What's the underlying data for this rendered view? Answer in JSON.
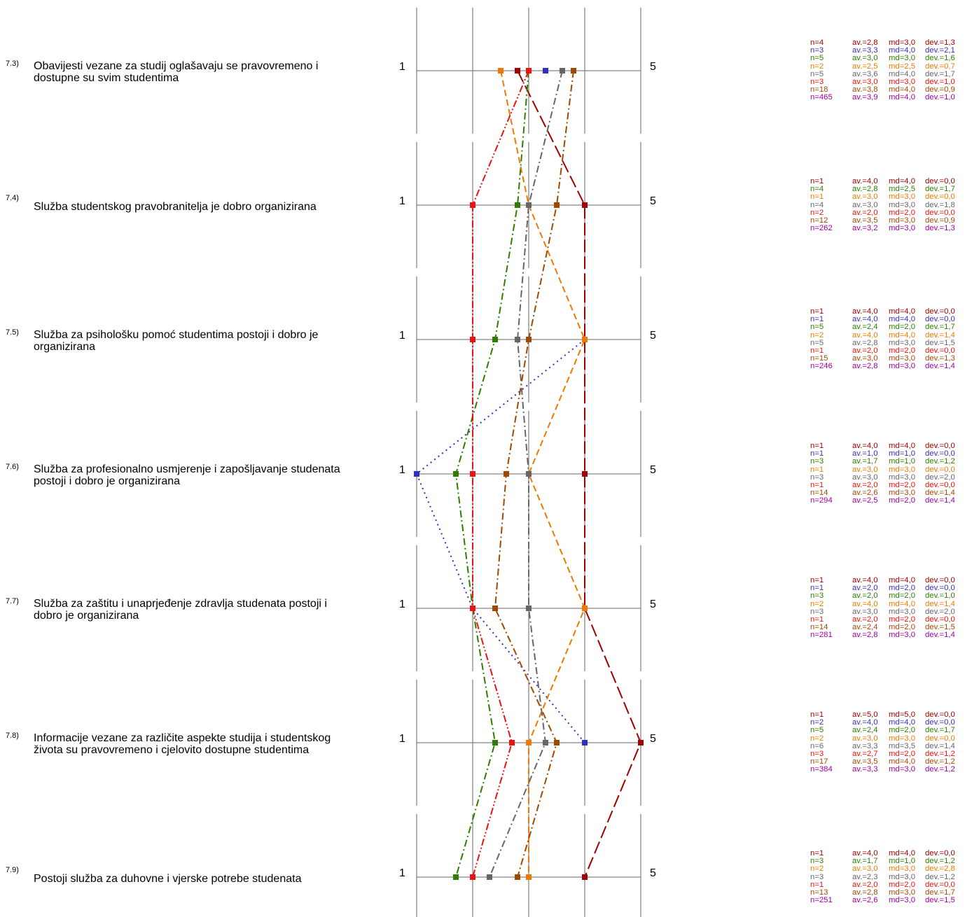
{
  "chart_data": {
    "type": "line",
    "scale": {
      "min_label": "1",
      "max_label": "5",
      "min": 1,
      "max": 5
    },
    "series": [
      {
        "color": "#a00000",
        "dash": "long-dash",
        "values": [
          2.8,
          4.0,
          4.0,
          4.0,
          4.0,
          5.0,
          4.0
        ]
      },
      {
        "color": "#3030c0",
        "dash": "dot",
        "values": [
          3.3,
          null,
          4.0,
          1.0,
          2.0,
          4.0,
          null
        ]
      },
      {
        "color": "#2e7d00",
        "dash": "dash-dot",
        "values": [
          3.0,
          2.8,
          2.4,
          1.7,
          2.0,
          2.4,
          1.7
        ]
      },
      {
        "color": "#f07800",
        "dash": "dash",
        "values": [
          2.5,
          3.0,
          4.0,
          3.0,
          4.0,
          3.0,
          3.0
        ]
      },
      {
        "color": "#666666",
        "dash": "dash-dot",
        "values": [
          3.6,
          3.0,
          2.8,
          3.0,
          3.0,
          3.3,
          2.3
        ]
      },
      {
        "color": "#ee1111",
        "dash": "dash-dot-dot",
        "values": [
          3.0,
          2.0,
          2.0,
          2.0,
          2.0,
          2.7,
          2.0
        ]
      },
      {
        "color": "#a04800",
        "dash": "dash-dot",
        "values": [
          3.8,
          3.5,
          3.0,
          2.6,
          2.4,
          3.5,
          2.8
        ]
      }
    ]
  },
  "colors": {
    "s1": "#a00000",
    "s2": "#3030c0",
    "s3": "#2e7d00",
    "s4": "#f07800",
    "s5": "#666666",
    "s6": "#ee1111",
    "s7": "#a04800",
    "total": "#a000a0"
  },
  "questions": [
    {
      "num": "7.3)",
      "text": "Obavijesti vezane za studij oglašavaju se pravovremeno i dostupne su svim studentima",
      "stats": [
        {
          "s": "s1",
          "n": "n=4",
          "av": "av.=2,8",
          "md": "md=3,0",
          "dev": "dev.=1,3"
        },
        {
          "s": "s2",
          "n": "n=3",
          "av": "av.=3,3",
          "md": "md=4,0",
          "dev": "dev.=2,1"
        },
        {
          "s": "s3",
          "n": "n=5",
          "av": "av.=3,0",
          "md": "md=3,0",
          "dev": "dev.=1,6"
        },
        {
          "s": "s4",
          "n": "n=2",
          "av": "av.=2,5",
          "md": "md=2,5",
          "dev": "dev.=0,7"
        },
        {
          "s": "s5",
          "n": "n=5",
          "av": "av.=3,6",
          "md": "md=4,0",
          "dev": "dev.=1,7"
        },
        {
          "s": "s6",
          "n": "n=3",
          "av": "av.=3,0",
          "md": "md=3,0",
          "dev": "dev.=1,0"
        },
        {
          "s": "s7",
          "n": "n=18",
          "av": "av.=3,8",
          "md": "md=4,0",
          "dev": "dev.=0,9"
        },
        {
          "s": "total",
          "n": "n=465",
          "av": "av.=3,9",
          "md": "md=4,0",
          "dev": "dev.=1,0"
        }
      ]
    },
    {
      "num": "7.4)",
      "text": "Služba studentskog pravobranitelja je dobro organizirana",
      "stats": [
        {
          "s": "s1",
          "n": "n=1",
          "av": "av.=4,0",
          "md": "md=4,0",
          "dev": "dev.=0,0"
        },
        {
          "s": "s3",
          "n": "n=4",
          "av": "av.=2,8",
          "md": "md=2,5",
          "dev": "dev.=1,7"
        },
        {
          "s": "s4",
          "n": "n=1",
          "av": "av.=3,0",
          "md": "md=3,0",
          "dev": "dev.=0,0"
        },
        {
          "s": "s5",
          "n": "n=4",
          "av": "av.=3,0",
          "md": "md=3,0",
          "dev": "dev.=1,8"
        },
        {
          "s": "s6",
          "n": "n=2",
          "av": "av.=2,0",
          "md": "md=2,0",
          "dev": "dev.=0,0"
        },
        {
          "s": "s7",
          "n": "n=12",
          "av": "av.=3,5",
          "md": "md=3,0",
          "dev": "dev.=0,9"
        },
        {
          "s": "total",
          "n": "n=262",
          "av": "av.=3,2",
          "md": "md=3,0",
          "dev": "dev.=1,3"
        }
      ]
    },
    {
      "num": "7.5)",
      "text": "Služba za psihološku pomoć studentima postoji i dobro je organizirana",
      "stats": [
        {
          "s": "s1",
          "n": "n=1",
          "av": "av.=4,0",
          "md": "md=4,0",
          "dev": "dev.=0,0"
        },
        {
          "s": "s2",
          "n": "n=1",
          "av": "av.=4,0",
          "md": "md=4,0",
          "dev": "dev.=0,0"
        },
        {
          "s": "s3",
          "n": "n=5",
          "av": "av.=2,4",
          "md": "md=2,0",
          "dev": "dev.=1,7"
        },
        {
          "s": "s4",
          "n": "n=2",
          "av": "av.=4,0",
          "md": "md=4,0",
          "dev": "dev.=1,4"
        },
        {
          "s": "s5",
          "n": "n=5",
          "av": "av.=2,8",
          "md": "md=3,0",
          "dev": "dev.=1,5"
        },
        {
          "s": "s6",
          "n": "n=1",
          "av": "av.=2,0",
          "md": "md=2,0",
          "dev": "dev.=0,0"
        },
        {
          "s": "s7",
          "n": "n=15",
          "av": "av.=3,0",
          "md": "md=3,0",
          "dev": "dev.=1,3"
        },
        {
          "s": "total",
          "n": "n=246",
          "av": "av.=2,8",
          "md": "md=3,0",
          "dev": "dev.=1,4"
        }
      ]
    },
    {
      "num": "7.6)",
      "text": "Služba za profesionalno usmjerenje i zapošljavanje studenata postoji i dobro je organizirana",
      "stats": [
        {
          "s": "s1",
          "n": "n=1",
          "av": "av.=4,0",
          "md": "md=4,0",
          "dev": "dev.=0,0"
        },
        {
          "s": "s2",
          "n": "n=1",
          "av": "av.=1,0",
          "md": "md=1,0",
          "dev": "dev.=0,0"
        },
        {
          "s": "s3",
          "n": "n=3",
          "av": "av.=1,7",
          "md": "md=1,0",
          "dev": "dev.=1,2"
        },
        {
          "s": "s4",
          "n": "n=1",
          "av": "av.=3,0",
          "md": "md=3,0",
          "dev": "dev.=0,0"
        },
        {
          "s": "s5",
          "n": "n=3",
          "av": "av.=3,0",
          "md": "md=3,0",
          "dev": "dev.=2,0"
        },
        {
          "s": "s6",
          "n": "n=1",
          "av": "av.=2,0",
          "md": "md=2,0",
          "dev": "dev.=0,0"
        },
        {
          "s": "s7",
          "n": "n=14",
          "av": "av.=2,6",
          "md": "md=3,0",
          "dev": "dev.=1,4"
        },
        {
          "s": "total",
          "n": "n=294",
          "av": "av.=2,5",
          "md": "md=2,0",
          "dev": "dev.=1,4"
        }
      ]
    },
    {
      "num": "7.7)",
      "text": "Služba za zaštitu i unaprjeđenje zdravlja studenata postoji i dobro je organizirana",
      "stats": [
        {
          "s": "s1",
          "n": "n=1",
          "av": "av.=4,0",
          "md": "md=4,0",
          "dev": "dev.=0,0"
        },
        {
          "s": "s2",
          "n": "n=1",
          "av": "av.=2,0",
          "md": "md=2,0",
          "dev": "dev.=0,0"
        },
        {
          "s": "s3",
          "n": "n=3",
          "av": "av.=2,0",
          "md": "md=2,0",
          "dev": "dev.=1,0"
        },
        {
          "s": "s4",
          "n": "n=2",
          "av": "av.=4,0",
          "md": "md=4,0",
          "dev": "dev.=1,4"
        },
        {
          "s": "s5",
          "n": "n=3",
          "av": "av.=3,0",
          "md": "md=3,0",
          "dev": "dev.=2,0"
        },
        {
          "s": "s6",
          "n": "n=1",
          "av": "av.=2,0",
          "md": "md=2,0",
          "dev": "dev.=0,0"
        },
        {
          "s": "s7",
          "n": "n=14",
          "av": "av.=2,4",
          "md": "md=2,0",
          "dev": "dev.=1,5"
        },
        {
          "s": "total",
          "n": "n=281",
          "av": "av.=2,8",
          "md": "md=3,0",
          "dev": "dev.=1,4"
        }
      ]
    },
    {
      "num": "7.8)",
      "text": "Informacije vezane za različite aspekte studija i studentskog života su pravovremeno i cjelovito dostupne studentima",
      "stats": [
        {
          "s": "s1",
          "n": "n=1",
          "av": "av.=5,0",
          "md": "md=5,0",
          "dev": "dev.=0,0"
        },
        {
          "s": "s2",
          "n": "n=2",
          "av": "av.=4,0",
          "md": "md=4,0",
          "dev": "dev.=0,0"
        },
        {
          "s": "s3",
          "n": "n=5",
          "av": "av.=2,4",
          "md": "md=2,0",
          "dev": "dev.=1,7"
        },
        {
          "s": "s4",
          "n": "n=2",
          "av": "av.=3,0",
          "md": "md=3,0",
          "dev": "dev.=0,0"
        },
        {
          "s": "s5",
          "n": "n=6",
          "av": "av.=3,3",
          "md": "md=3,5",
          "dev": "dev.=1,4"
        },
        {
          "s": "s6",
          "n": "n=3",
          "av": "av.=2,7",
          "md": "md=2,0",
          "dev": "dev.=1,2"
        },
        {
          "s": "s7",
          "n": "n=17",
          "av": "av.=3,5",
          "md": "md=4,0",
          "dev": "dev.=1,2"
        },
        {
          "s": "total",
          "n": "n=384",
          "av": "av.=3,3",
          "md": "md=3,0",
          "dev": "dev.=1,2"
        }
      ]
    },
    {
      "num": "7.9)",
      "text": "Postoji služba za duhovne i vjerske potrebe studenata",
      "stats": [
        {
          "s": "s1",
          "n": "n=1",
          "av": "av.=4,0",
          "md": "md=4,0",
          "dev": "dev.=0,0"
        },
        {
          "s": "s3",
          "n": "n=3",
          "av": "av.=1,7",
          "md": "md=1,0",
          "dev": "dev.=1,2"
        },
        {
          "s": "s4",
          "n": "n=2",
          "av": "av.=3,0",
          "md": "md=3,0",
          "dev": "dev.=2,8"
        },
        {
          "s": "s5",
          "n": "n=3",
          "av": "av.=2,3",
          "md": "md=3,0",
          "dev": "dev.=1,2"
        },
        {
          "s": "s6",
          "n": "n=1",
          "av": "av.=2,0",
          "md": "md=2,0",
          "dev": "dev.=0,0"
        },
        {
          "s": "s7",
          "n": "n=13",
          "av": "av.=2,8",
          "md": "md=3,0",
          "dev": "dev.=1,7"
        },
        {
          "s": "total",
          "n": "n=251",
          "av": "av.=2,6",
          "md": "md=3,0",
          "dev": "dev.=1,5"
        }
      ]
    }
  ]
}
